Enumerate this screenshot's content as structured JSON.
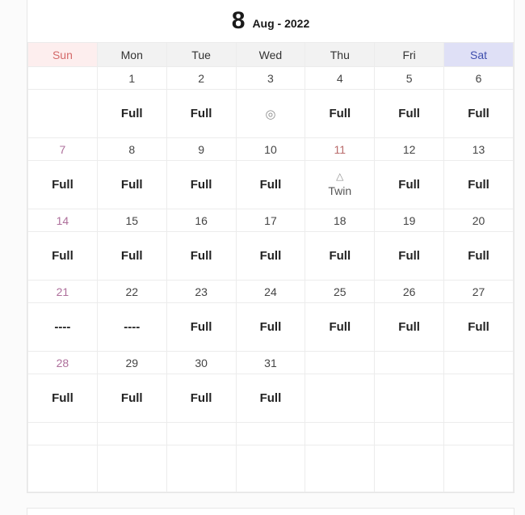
{
  "page": {
    "bg": "#fbfbfb"
  },
  "calendar": {
    "title_day": "8",
    "title_month_year": "Aug - 2022",
    "weekday_headers": [
      {
        "label": "Sun",
        "type": "sun"
      },
      {
        "label": "Mon",
        "type": "weekday"
      },
      {
        "label": "Tue",
        "type": "weekday"
      },
      {
        "label": "Wed",
        "type": "weekday"
      },
      {
        "label": "Thu",
        "type": "weekday"
      },
      {
        "label": "Fri",
        "type": "weekday"
      },
      {
        "label": "Sat",
        "type": "sat"
      }
    ],
    "status_labels": {
      "full": "Full",
      "dash": "----",
      "circle": "◎",
      "twin_symbol": "△",
      "twin_label": "Twin"
    },
    "weeks": [
      {
        "days": [
          {
            "date": "",
            "date_color": "normal",
            "status": "none"
          },
          {
            "date": "1",
            "date_color": "normal",
            "status": "full"
          },
          {
            "date": "2",
            "date_color": "normal",
            "status": "full"
          },
          {
            "date": "3",
            "date_color": "normal",
            "status": "circle"
          },
          {
            "date": "4",
            "date_color": "normal",
            "status": "full"
          },
          {
            "date": "5",
            "date_color": "normal",
            "status": "full"
          },
          {
            "date": "6",
            "date_color": "normal",
            "status": "full"
          }
        ]
      },
      {
        "days": [
          {
            "date": "7",
            "date_color": "sunday",
            "status": "full"
          },
          {
            "date": "8",
            "date_color": "normal",
            "status": "full"
          },
          {
            "date": "9",
            "date_color": "normal",
            "status": "full"
          },
          {
            "date": "10",
            "date_color": "normal",
            "status": "full"
          },
          {
            "date": "11",
            "date_color": "holiday",
            "status": "twin"
          },
          {
            "date": "12",
            "date_color": "normal",
            "status": "full"
          },
          {
            "date": "13",
            "date_color": "normal",
            "status": "full"
          }
        ]
      },
      {
        "days": [
          {
            "date": "14",
            "date_color": "sunday",
            "status": "full"
          },
          {
            "date": "15",
            "date_color": "normal",
            "status": "full"
          },
          {
            "date": "16",
            "date_color": "normal",
            "status": "full"
          },
          {
            "date": "17",
            "date_color": "normal",
            "status": "full"
          },
          {
            "date": "18",
            "date_color": "normal",
            "status": "full"
          },
          {
            "date": "19",
            "date_color": "normal",
            "status": "full"
          },
          {
            "date": "20",
            "date_color": "normal",
            "status": "full"
          }
        ]
      },
      {
        "days": [
          {
            "date": "21",
            "date_color": "sunday",
            "status": "dash"
          },
          {
            "date": "22",
            "date_color": "normal",
            "status": "dash"
          },
          {
            "date": "23",
            "date_color": "normal",
            "status": "full"
          },
          {
            "date": "24",
            "date_color": "normal",
            "status": "full"
          },
          {
            "date": "25",
            "date_color": "normal",
            "status": "full"
          },
          {
            "date": "26",
            "date_color": "normal",
            "status": "full"
          },
          {
            "date": "27",
            "date_color": "normal",
            "status": "full"
          }
        ]
      },
      {
        "days": [
          {
            "date": "28",
            "date_color": "sunday",
            "status": "full"
          },
          {
            "date": "29",
            "date_color": "normal",
            "status": "full"
          },
          {
            "date": "30",
            "date_color": "normal",
            "status": "full"
          },
          {
            "date": "31",
            "date_color": "normal",
            "status": "full"
          },
          {
            "date": "",
            "date_color": "normal",
            "status": "none"
          },
          {
            "date": "",
            "date_color": "normal",
            "status": "none"
          },
          {
            "date": "",
            "date_color": "normal",
            "status": "none"
          }
        ]
      },
      {
        "days": [
          {
            "date": "",
            "date_color": "normal",
            "status": "none"
          },
          {
            "date": "",
            "date_color": "normal",
            "status": "none"
          },
          {
            "date": "",
            "date_color": "normal",
            "status": "none"
          },
          {
            "date": "",
            "date_color": "normal",
            "status": "none"
          },
          {
            "date": "",
            "date_color": "normal",
            "status": "none"
          },
          {
            "date": "",
            "date_color": "normal",
            "status": "none"
          },
          {
            "date": "",
            "date_color": "normal",
            "status": "none"
          }
        ]
      }
    ],
    "colors": {
      "sun_header_bg": "#fdeeee",
      "sun_header_text": "#d46a6a",
      "sat_header_bg": "#dfe0f6",
      "sat_header_text": "#3f4fae",
      "weekday_header_bg": "#f2f2f2",
      "weekday_header_text": "#333333",
      "sunday_date_text": "#ae6f9b",
      "holiday_date_text": "#b96a6a",
      "date_text": "#444444",
      "status_text": "#222222",
      "symbol_text": "#8f8f8f",
      "twin_text": "#555555"
    }
  }
}
